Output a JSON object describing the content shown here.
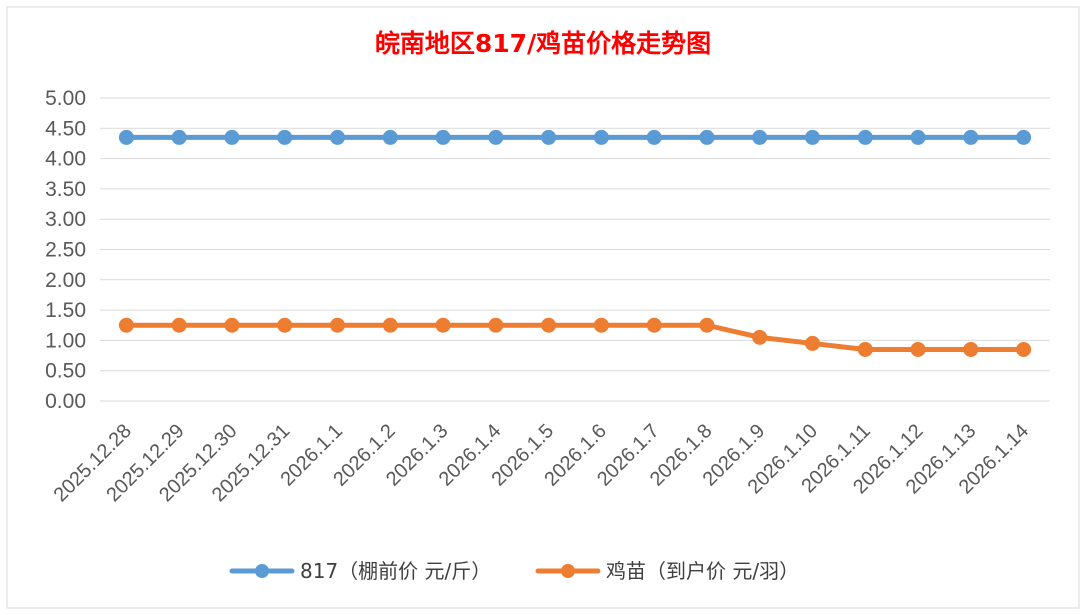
{
  "chart_data": {
    "type": "line",
    "title": "皖南地区817/鸡苗价格走势图",
    "xlabel": "",
    "ylabel": "",
    "ylim": [
      0,
      5
    ],
    "y_step": 0.5,
    "y_tick_labels": [
      "0.00",
      "0.50",
      "1.00",
      "1.50",
      "2.00",
      "2.50",
      "3.00",
      "3.50",
      "4.00",
      "4.50",
      "5.00"
    ],
    "grid": true,
    "legend_position": "bottom",
    "x": [
      "2025.12.28",
      "2025.12.29",
      "2025.12.30",
      "2025.12.31",
      "2026.1.1",
      "2026.1.2",
      "2026.1.3",
      "2026.1.4",
      "2026.1.5",
      "2026.1.6",
      "2026.1.7",
      "2026.1.8",
      "2026.1.9",
      "2026.1.10",
      "2026.1.11",
      "2026.1.12",
      "2026.1.13",
      "2026.1.14"
    ],
    "series": [
      {
        "name": "817（棚前价 元/斤）",
        "color": "#5b9bd5",
        "values": [
          4.35,
          4.35,
          4.35,
          4.35,
          4.35,
          4.35,
          4.35,
          4.35,
          4.35,
          4.35,
          4.35,
          4.35,
          4.35,
          4.35,
          4.35,
          4.35,
          4.35,
          4.35
        ]
      },
      {
        "name": "鸡苗（到户价 元/羽）",
        "color": "#ed7d31",
        "values": [
          1.25,
          1.25,
          1.25,
          1.25,
          1.25,
          1.25,
          1.25,
          1.25,
          1.25,
          1.25,
          1.25,
          1.25,
          1.05,
          0.95,
          0.85,
          0.85,
          0.85,
          0.85
        ]
      }
    ]
  },
  "colors": {
    "title": "#ff0000",
    "grid": "#d9d9d9",
    "tick_text": "#595959"
  }
}
